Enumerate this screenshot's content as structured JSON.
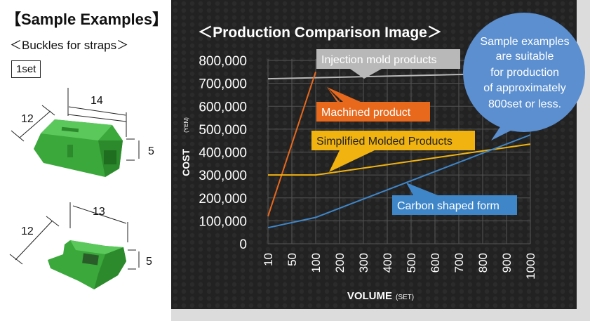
{
  "left": {
    "title": "【Sample Examples】",
    "subtitle": "＜Buckles for straps＞",
    "set_label": "1set",
    "buckle1": {
      "width": "14",
      "depth": "12",
      "height": "5"
    },
    "buckle2": {
      "width": "13",
      "depth": "12",
      "height": "5"
    }
  },
  "callout": {
    "lines": [
      "Sample examples",
      "are suitable",
      "for production",
      "of approximately",
      "800set or less."
    ]
  },
  "colors": {
    "injection": "#b8b8b8",
    "machined": "#e8681c",
    "simplified": "#f1b30f",
    "carbon": "#3f86c9",
    "callout": "#5b8fd0"
  },
  "chart_data": {
    "type": "line",
    "title": "＜Production Comparison Image＞",
    "xlabel": "VOLUME",
    "xlabel_unit": "(SET)",
    "ylabel": "COST",
    "ylabel_unit": "(YEN)",
    "categories": [
      "10",
      "50",
      "100",
      "200",
      "300",
      "400",
      "500",
      "600",
      "700",
      "800",
      "900",
      "1000"
    ],
    "x_positions": [
      10,
      50,
      100,
      200,
      300,
      400,
      500,
      600,
      700,
      800,
      900,
      1000
    ],
    "y_ticks": [
      "0",
      "100,000",
      "200,000",
      "300,000",
      "400,000",
      "500,000",
      "600,000",
      "700,000",
      "800,000"
    ],
    "ylim": [
      0,
      800000
    ],
    "grid": true,
    "series": [
      {
        "name": "Injection mold products",
        "color": "#b8b8b8",
        "x": [
          10,
          1000
        ],
        "y": [
          720000,
          745000
        ]
      },
      {
        "name": "Machined product",
        "color": "#e8681c",
        "x": [
          10,
          100
        ],
        "y": [
          120000,
          750000
        ]
      },
      {
        "name": "Simplified Molded Products",
        "color": "#f1b30f",
        "x": [
          10,
          100,
          1000
        ],
        "y": [
          300000,
          300000,
          435000
        ]
      },
      {
        "name": "Carbon shaped form",
        "color": "#3f86c9",
        "x": [
          10,
          100,
          1000
        ],
        "y": [
          70000,
          115000,
          475000
        ]
      }
    ]
  }
}
